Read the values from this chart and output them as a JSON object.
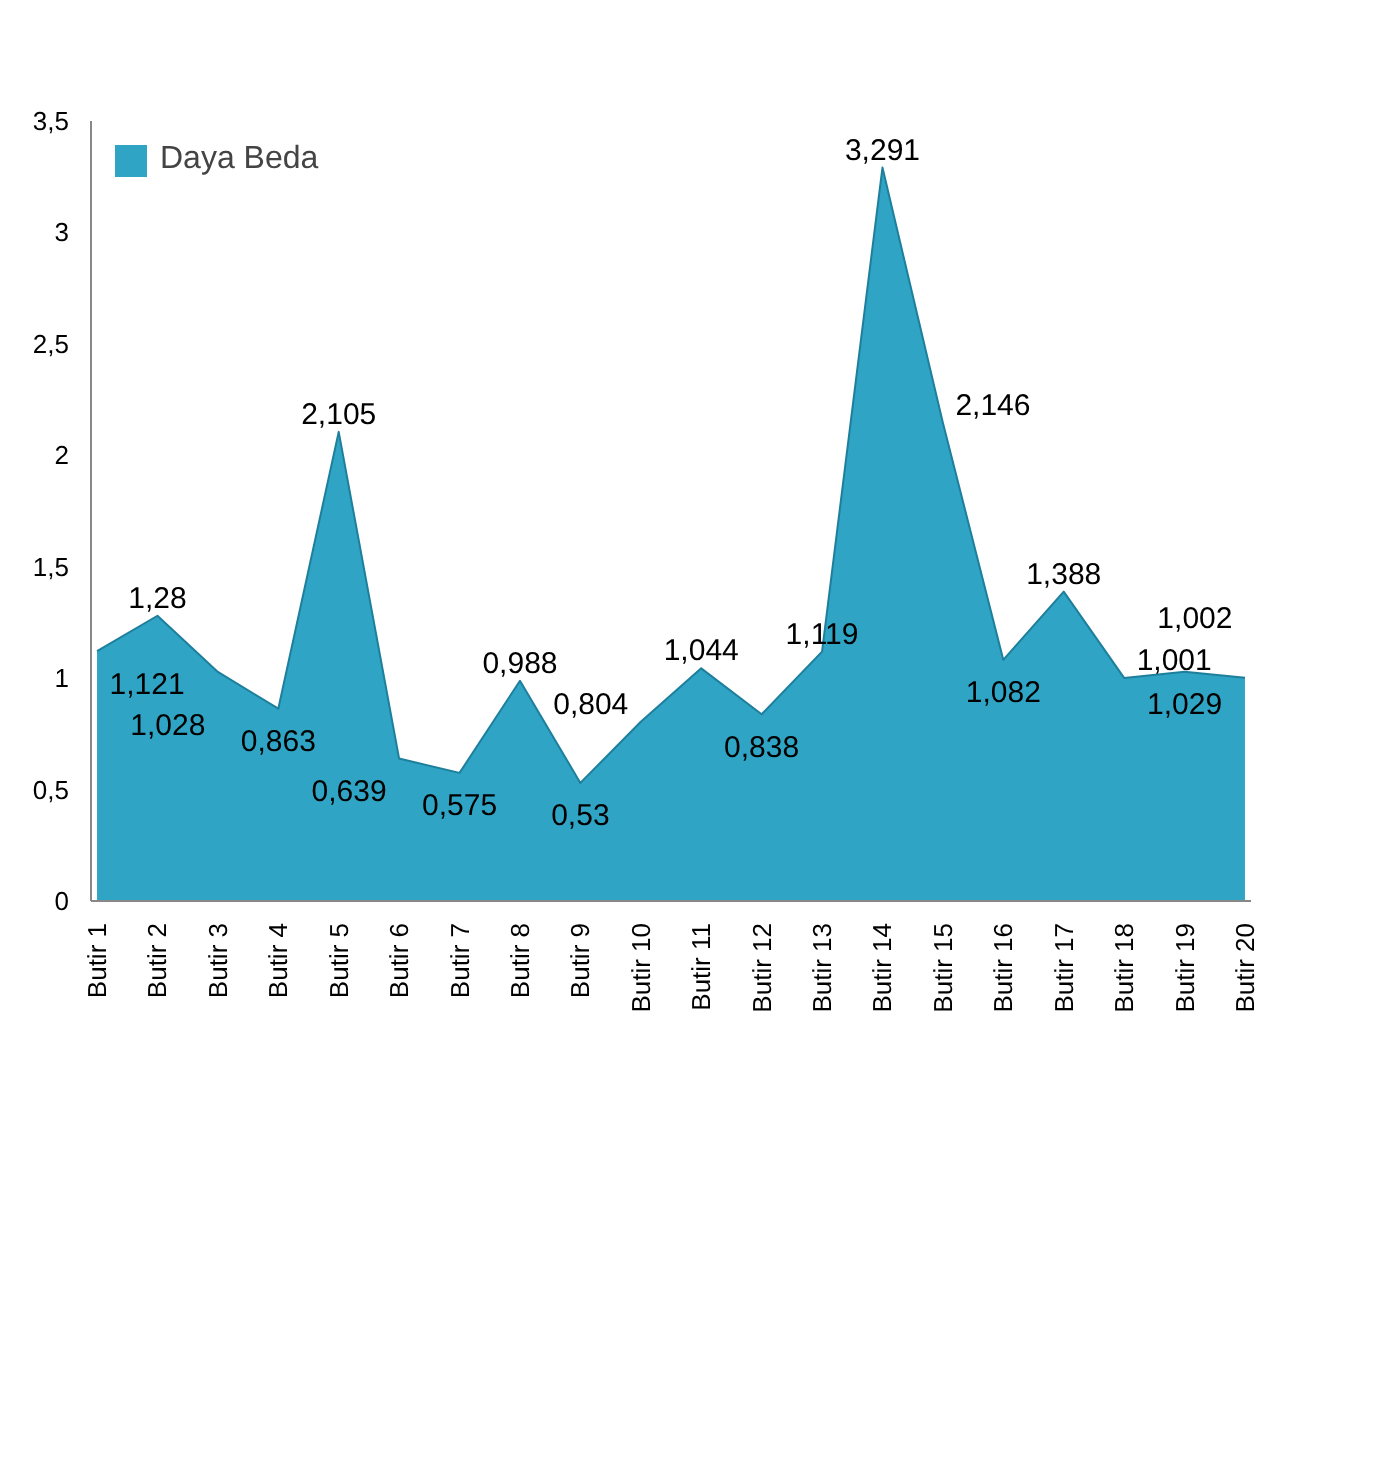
{
  "chart_data": {
    "type": "area",
    "categories": [
      "Butir 1",
      "Butir 2",
      "Butir 3",
      "Butir 4",
      "Butir 5",
      "Butir 6",
      "Butir 7",
      "Butir 8",
      "Butir 9",
      "Butir 10",
      "Butir 11",
      "Butir 12",
      "Butir 13",
      "Butir 14",
      "Butir 15",
      "Butir 16",
      "Butir 17",
      "Butir 18",
      "Butir 19",
      "Butir 20"
    ],
    "series": [
      {
        "name": "Daya Beda",
        "color": "#2fa4c4",
        "values": [
          1.121,
          1.28,
          1.028,
          0.863,
          2.105,
          0.639,
          0.575,
          0.988,
          0.53,
          0.804,
          1.044,
          0.838,
          1.119,
          3.291,
          2.146,
          1.082,
          1.388,
          1.001,
          1.029,
          1.002
        ],
        "value_labels": [
          "1,121",
          "1,28",
          "1,028",
          "0,863",
          "2,105",
          "0,639",
          "0,575",
          "0,988",
          "0,53",
          "0,804",
          "1,044",
          "0,838",
          "1,119",
          "3,291",
          "2,146",
          "1,082",
          "1,388",
          "1,001",
          "1,029",
          "1,002"
        ]
      }
    ],
    "ylim": [
      0,
      3.5
    ],
    "yticks": [
      0,
      {
        "value": 0.5,
        "label": "0,5"
      },
      1,
      {
        "value": 1.5,
        "label": "1,5"
      },
      2,
      {
        "value": 2.5,
        "label": "2,5"
      },
      3,
      {
        "value": 3.5,
        "label": "3,5"
      }
    ],
    "grid": false,
    "legend": "top left"
  }
}
